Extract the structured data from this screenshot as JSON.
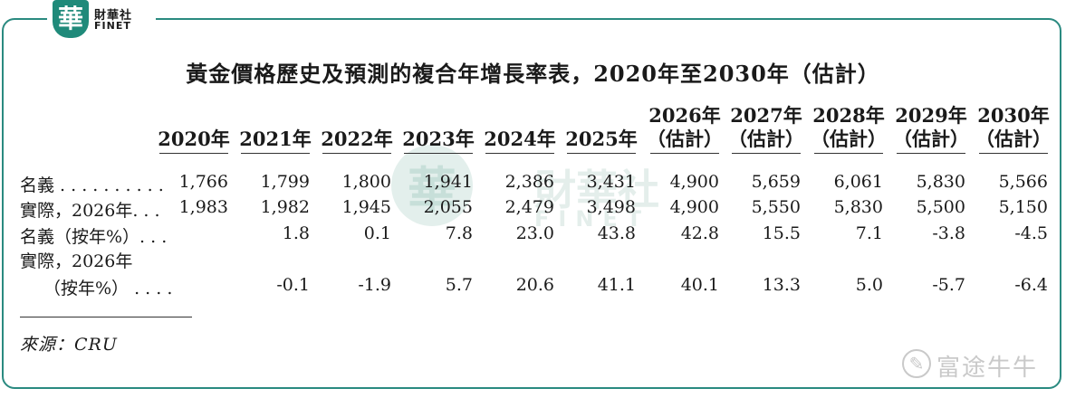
{
  "logo": {
    "badge": "華",
    "cn": "財華社",
    "en": "FINET"
  },
  "title": "黃金價格歷史及預測的複合年增長率表，2020年至2030年（估計）",
  "columns": [
    {
      "year": "2020年",
      "note": ""
    },
    {
      "year": "2021年",
      "note": ""
    },
    {
      "year": "2022年",
      "note": ""
    },
    {
      "year": "2023年",
      "note": ""
    },
    {
      "year": "2024年",
      "note": ""
    },
    {
      "year": "2025年",
      "note": ""
    },
    {
      "year": "2026年",
      "note": "（估計）"
    },
    {
      "year": "2027年",
      "note": "（估計）"
    },
    {
      "year": "2028年",
      "note": "（估計）"
    },
    {
      "year": "2029年",
      "note": "（估計）"
    },
    {
      "year": "2030年",
      "note": "（估計）"
    }
  ],
  "rows": [
    {
      "label": "名義 . . . . . . . . . .",
      "label2": "",
      "values": [
        "1,766",
        "1,799",
        "1,800",
        "1,941",
        "2,386",
        "3,431",
        "4,900",
        "5,659",
        "6,061",
        "5,830",
        "5,566"
      ]
    },
    {
      "label": "實際，2026年. . .",
      "label2": "",
      "values": [
        "1,983",
        "1,982",
        "1,945",
        "2,055",
        "2,479",
        "3,498",
        "4,900",
        "5,550",
        "5,830",
        "5,500",
        "5,150"
      ]
    },
    {
      "label": "名義（按年%）. . .",
      "label2": "",
      "values": [
        "",
        "1.8",
        "0.1",
        "7.8",
        "23.0",
        "43.8",
        "42.8",
        "15.5",
        "7.1",
        "-3.8",
        "-4.5"
      ]
    },
    {
      "label": "實際，2026年",
      "label2": "（按年%） . . . .",
      "values": [
        "",
        "-0.1",
        "-1.9",
        "5.7",
        "20.6",
        "41.1",
        "40.1",
        "13.3",
        "5.0",
        "-5.7",
        "-6.4"
      ]
    }
  ],
  "source": "來源：CRU",
  "watermark": {
    "badge": "華",
    "cn": "財華社",
    "en": "FINET"
  },
  "footer_brand": {
    "icon": "moomoo-icon",
    "text": "富途牛牛"
  }
}
